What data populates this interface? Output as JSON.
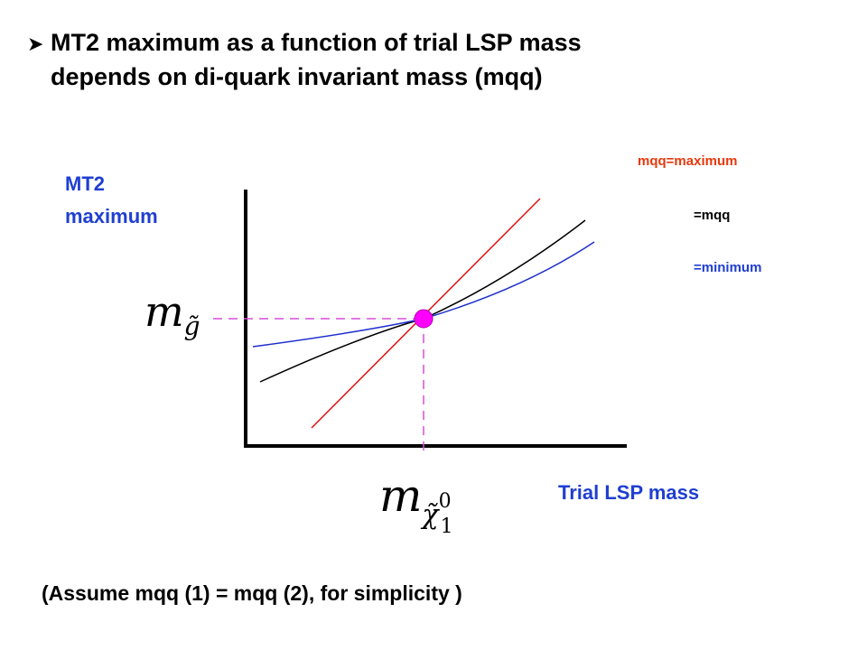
{
  "title": {
    "bullet_icon": "arrow-bullet-icon",
    "line1": "MT2 maximum as a function of trial LSP mass",
    "line2": "depends on di-quark invariant mass (mqq)"
  },
  "axes": {
    "y_label_line1": "MT2",
    "y_label_line2": "maximum",
    "x_label": "Trial LSP mass"
  },
  "legend": {
    "max": "mqq=maximum",
    "mqq": "=mqq",
    "min": "=minimum"
  },
  "math": {
    "y_marker_m": "m",
    "y_marker_sub": "g̃",
    "x_marker_m": "m",
    "x_marker_chi": "χ̃",
    "x_marker_sup": "0",
    "x_marker_sub": "1"
  },
  "footnote": "(Assume mqq (1) = mqq (2), for simplicity )",
  "colors": {
    "red_line": "#dd1111",
    "black_line": "#000000",
    "blue_line": "#1f2fcc",
    "guide_dash": "#d94fd9",
    "point": "#ff00ff",
    "label_blue": "#1f3fd0",
    "legend_orange": "#e8380c"
  }
}
